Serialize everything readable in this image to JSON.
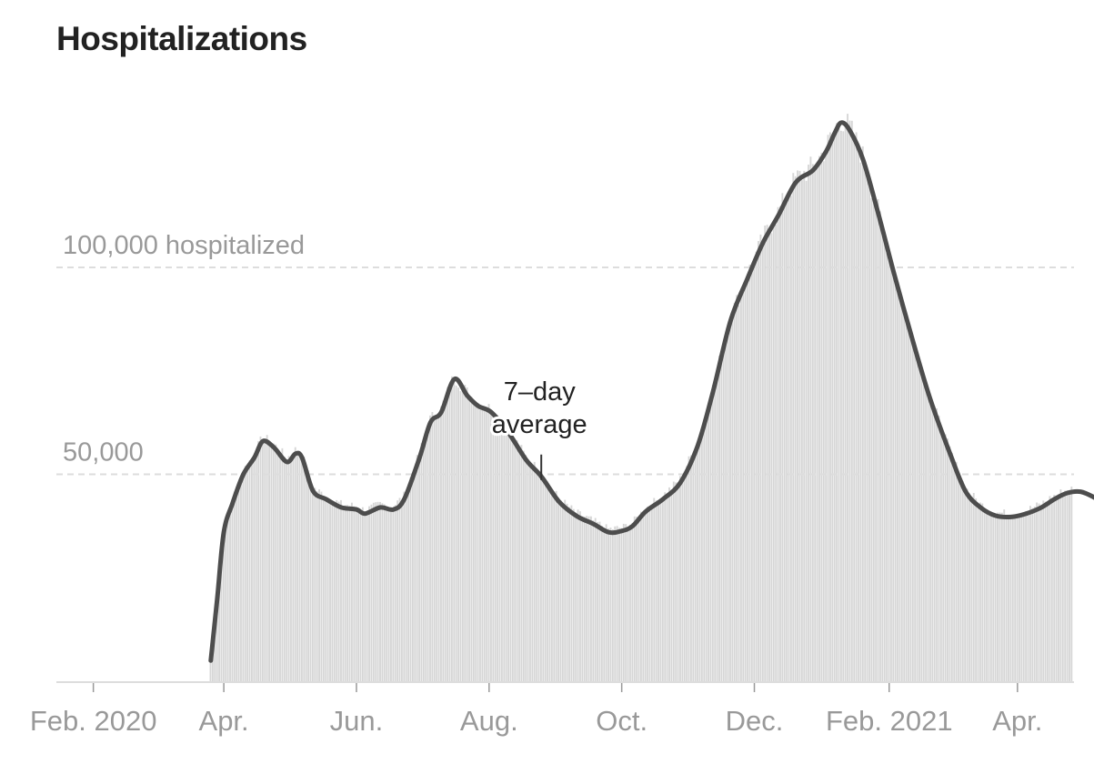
{
  "chart_data": {
    "type": "bar",
    "title": "Hospitalizations",
    "unit_label": "hospitalized",
    "ylim": [
      0,
      140000
    ],
    "yticks": [
      {
        "value": 50000,
        "label": "50,000"
      },
      {
        "value": 100000,
        "label": "100,000 hospitalized"
      }
    ],
    "xlim": [
      "2020-01-15",
      "2021-04-27"
    ],
    "xticks": [
      {
        "date": "2020-02-01",
        "label": "Feb. 2020"
      },
      {
        "date": "2020-04-01",
        "label": "Apr."
      },
      {
        "date": "2020-06-01",
        "label": "Jun."
      },
      {
        "date": "2020-08-01",
        "label": "Aug."
      },
      {
        "date": "2020-10-01",
        "label": "Oct."
      },
      {
        "date": "2020-12-01",
        "label": "Dec."
      },
      {
        "date": "2021-02-01",
        "label": "Feb. 2021"
      },
      {
        "date": "2021-04-01",
        "label": "Apr."
      }
    ],
    "annotation": {
      "text_line1": "7–day",
      "text_line2": "average",
      "date": "2020-08-25"
    },
    "bar_color": "#d6d6d6",
    "line_color": "#4d4d4d",
    "grid_color": "#dddddd",
    "series": [
      {
        "type": "line",
        "name": "7–day average",
        "points": [
          [
            "2020-03-26",
            5000
          ],
          [
            "2020-03-29",
            20000
          ],
          [
            "2020-04-01",
            36000
          ],
          [
            "2020-04-05",
            43000
          ],
          [
            "2020-04-10",
            50000
          ],
          [
            "2020-04-15",
            54000
          ],
          [
            "2020-04-19",
            58000
          ],
          [
            "2020-04-24",
            56500
          ],
          [
            "2020-04-30",
            53000
          ],
          [
            "2020-05-04",
            55000
          ],
          [
            "2020-05-07",
            54000
          ],
          [
            "2020-05-12",
            46000
          ],
          [
            "2020-05-18",
            44000
          ],
          [
            "2020-05-25",
            42000
          ],
          [
            "2020-06-01",
            41500
          ],
          [
            "2020-06-05",
            40500
          ],
          [
            "2020-06-12",
            42000
          ],
          [
            "2020-06-18",
            41500
          ],
          [
            "2020-06-23",
            44000
          ],
          [
            "2020-06-30",
            54000
          ],
          [
            "2020-07-05",
            62500
          ],
          [
            "2020-07-10",
            65000
          ],
          [
            "2020-07-16",
            73000
          ],
          [
            "2020-07-22",
            69000
          ],
          [
            "2020-07-27",
            66500
          ],
          [
            "2020-08-02",
            65000
          ],
          [
            "2020-08-10",
            60000
          ],
          [
            "2020-08-18",
            53500
          ],
          [
            "2020-08-25",
            49500
          ],
          [
            "2020-09-02",
            43500
          ],
          [
            "2020-09-10",
            40000
          ],
          [
            "2020-09-18",
            38000
          ],
          [
            "2020-09-25",
            36000
          ],
          [
            "2020-10-01",
            36300
          ],
          [
            "2020-10-06",
            37500
          ],
          [
            "2020-10-12",
            41000
          ],
          [
            "2020-10-20",
            44000
          ],
          [
            "2020-10-28",
            48000
          ],
          [
            "2020-11-05",
            57000
          ],
          [
            "2020-11-12",
            70000
          ],
          [
            "2020-11-20",
            87000
          ],
          [
            "2020-11-28",
            97500
          ],
          [
            "2020-12-05",
            106000
          ],
          [
            "2020-12-12",
            112500
          ],
          [
            "2020-12-20",
            120500
          ],
          [
            "2020-12-28",
            123500
          ],
          [
            "2021-01-03",
            128000
          ],
          [
            "2021-01-07",
            132500
          ],
          [
            "2021-01-10",
            135000
          ],
          [
            "2021-01-14",
            133000
          ],
          [
            "2021-01-20",
            126000
          ],
          [
            "2021-01-27",
            113000
          ],
          [
            "2021-02-03",
            99000
          ],
          [
            "2021-02-12",
            82000
          ],
          [
            "2021-02-20",
            68000
          ],
          [
            "2021-03-01",
            55000
          ],
          [
            "2021-03-08",
            46000
          ],
          [
            "2021-03-15",
            42000
          ],
          [
            "2021-03-22",
            40000
          ],
          [
            "2021-03-29",
            39700
          ],
          [
            "2021-04-05",
            40500
          ],
          [
            "2021-04-12",
            42000
          ],
          [
            "2021-04-18",
            44000
          ],
          [
            "2021-04-24",
            45500
          ],
          [
            "2021-04-30",
            45800
          ],
          [
            "2021-05-06",
            44500
          ],
          [
            "2021-05-10",
            43000
          ]
        ]
      },
      {
        "type": "bar",
        "name": "daily",
        "start_date": "2020-03-26",
        "end_date": "2021-05-10",
        "values_follow_line_with_noise": true
      }
    ]
  }
}
